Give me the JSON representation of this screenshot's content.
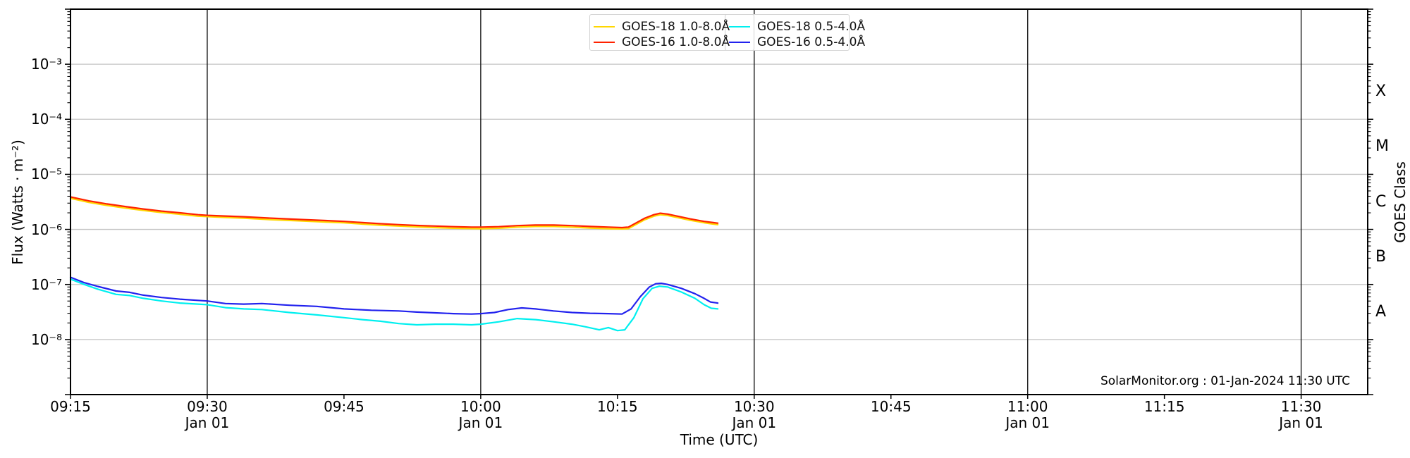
{
  "chart_data": {
    "type": "line",
    "title": "",
    "xlabel": "Time (UTC)",
    "ylabel": "Flux (Watts · m⁻²)",
    "y2label": "GOES Class",
    "annotation": "SolarMonitor.org : 01-Jan-2024 11:30 UTC",
    "grid": {
      "horizontal": true,
      "vertical": true
    },
    "legend_position": "upper center, two adjacent boxes",
    "xlim_minutes": [
      0,
      142.3
    ],
    "x_axis_start_time": "09:15",
    "ylim": [
      1e-09,
      0.01
    ],
    "x_ticks": [
      {
        "t": 0,
        "time": "09:15",
        "date": ""
      },
      {
        "t": 15,
        "time": "09:30",
        "date": "Jan 01"
      },
      {
        "t": 30,
        "time": "09:45",
        "date": ""
      },
      {
        "t": 45,
        "time": "10:00",
        "date": "Jan 01"
      },
      {
        "t": 60,
        "time": "10:15",
        "date": ""
      },
      {
        "t": 75,
        "time": "10:30",
        "date": "Jan 01"
      },
      {
        "t": 90,
        "time": "10:45",
        "date": ""
      },
      {
        "t": 105,
        "time": "11:00",
        "date": "Jan 01"
      },
      {
        "t": 120,
        "time": "11:15",
        "date": ""
      },
      {
        "t": 135,
        "time": "11:30",
        "date": "Jan 01"
      }
    ],
    "x_gridlines_t": [
      15,
      45,
      75,
      105,
      135
    ],
    "y_ticks_labeled": [
      {
        "exp": -3,
        "label": "10⁻³"
      },
      {
        "exp": -4,
        "label": "10⁻⁴"
      },
      {
        "exp": -5,
        "label": "10⁻⁵"
      },
      {
        "exp": -6,
        "label": "10⁻⁶"
      },
      {
        "exp": -7,
        "label": "10⁻⁷"
      },
      {
        "exp": -8,
        "label": "10⁻⁸"
      }
    ],
    "goes_classes": [
      {
        "label": "X",
        "log_center": -3.5
      },
      {
        "label": "M",
        "log_center": -4.5
      },
      {
        "label": "C",
        "log_center": -5.5
      },
      {
        "label": "B",
        "log_center": -6.5
      },
      {
        "label": "A",
        "log_center": -7.5
      }
    ],
    "colors": {
      "goes18_long": "#ffd700",
      "goes16_long": "#ff2200",
      "goes18_short": "#00efef",
      "goes16_short": "#2222ee",
      "h_grid": "#c4c4c4",
      "v_grid": "#1a1a1a",
      "frame": "#000000"
    },
    "series": [
      {
        "name": "GOES-18 1.0-8.0Å",
        "color_key": "goes18_long",
        "legend_box": "a",
        "points": [
          [
            0,
            3.67e-06
          ],
          [
            2,
            3.1e-06
          ],
          [
            4,
            2.73e-06
          ],
          [
            6,
            2.44e-06
          ],
          [
            8,
            2.21e-06
          ],
          [
            10,
            2.02e-06
          ],
          [
            12,
            1.88e-06
          ],
          [
            14,
            1.74e-06
          ],
          [
            17,
            1.65e-06
          ],
          [
            19,
            1.6e-06
          ],
          [
            22,
            1.5e-06
          ],
          [
            25,
            1.43e-06
          ],
          [
            28,
            1.36e-06
          ],
          [
            30,
            1.32e-06
          ],
          [
            32,
            1.25e-06
          ],
          [
            34,
            1.19e-06
          ],
          [
            36,
            1.15e-06
          ],
          [
            38,
            1.11e-06
          ],
          [
            40,
            1.08e-06
          ],
          [
            42,
            1.05e-06
          ],
          [
            45,
            1.03e-06
          ],
          [
            47,
            1.05e-06
          ],
          [
            49,
            1.1e-06
          ],
          [
            51,
            1.13e-06
          ],
          [
            53,
            1.13e-06
          ],
          [
            55,
            1.1e-06
          ],
          [
            57,
            1.06e-06
          ],
          [
            59,
            1.03e-06
          ],
          [
            60.5,
            1.02e-06
          ],
          [
            61.2,
            1.03e-06
          ],
          [
            62,
            1.22e-06
          ],
          [
            63,
            1.5e-06
          ],
          [
            64,
            1.74e-06
          ],
          [
            64.7,
            1.85e-06
          ],
          [
            65.5,
            1.79e-06
          ],
          [
            66.5,
            1.65e-06
          ],
          [
            68,
            1.46e-06
          ],
          [
            69.5,
            1.32e-06
          ],
          [
            70.5,
            1.25e-06
          ],
          [
            71,
            1.22e-06
          ]
        ]
      },
      {
        "name": "GOES-16 1.0-8.0Å",
        "color_key": "goes16_long",
        "legend_box": "a",
        "points": [
          [
            0,
            3.9e-06
          ],
          [
            2,
            3.3e-06
          ],
          [
            4,
            2.9e-06
          ],
          [
            6,
            2.6e-06
          ],
          [
            8,
            2.35e-06
          ],
          [
            10,
            2.15e-06
          ],
          [
            12,
            2e-06
          ],
          [
            14,
            1.85e-06
          ],
          [
            15,
            1.8e-06
          ],
          [
            17,
            1.75e-06
          ],
          [
            19,
            1.7e-06
          ],
          [
            22,
            1.6e-06
          ],
          [
            25,
            1.52e-06
          ],
          [
            28,
            1.45e-06
          ],
          [
            30,
            1.4e-06
          ],
          [
            32,
            1.33e-06
          ],
          [
            34,
            1.27e-06
          ],
          [
            36,
            1.22e-06
          ],
          [
            38,
            1.18e-06
          ],
          [
            40,
            1.15e-06
          ],
          [
            42,
            1.12e-06
          ],
          [
            44,
            1.1e-06
          ],
          [
            45,
            1.1e-06
          ],
          [
            47,
            1.12e-06
          ],
          [
            49,
            1.17e-06
          ],
          [
            51,
            1.2e-06
          ],
          [
            53,
            1.2e-06
          ],
          [
            55,
            1.17e-06
          ],
          [
            57,
            1.13e-06
          ],
          [
            59,
            1.1e-06
          ],
          [
            60.5,
            1.08e-06
          ],
          [
            61.2,
            1.1e-06
          ],
          [
            62,
            1.3e-06
          ],
          [
            63,
            1.6e-06
          ],
          [
            64,
            1.85e-06
          ],
          [
            64.7,
            1.97e-06
          ],
          [
            65.5,
            1.9e-06
          ],
          [
            66.5,
            1.75e-06
          ],
          [
            68,
            1.55e-06
          ],
          [
            69.5,
            1.4e-06
          ],
          [
            70.5,
            1.33e-06
          ],
          [
            71,
            1.3e-06
          ]
        ]
      },
      {
        "name": "GOES-18 0.5-4.0Å",
        "color_key": "goes18_short",
        "legend_box": "b",
        "points": [
          [
            0,
            1.25e-07
          ],
          [
            1.5,
            1e-07
          ],
          [
            3,
            8.2e-08
          ],
          [
            5,
            6.6e-08
          ],
          [
            6.5,
            6.3e-08
          ],
          [
            8,
            5.6e-08
          ],
          [
            10,
            5e-08
          ],
          [
            12,
            4.6e-08
          ],
          [
            15,
            4.3e-08
          ],
          [
            17,
            3.8e-08
          ],
          [
            19,
            3.6e-08
          ],
          [
            21,
            3.5e-08
          ],
          [
            24,
            3.1e-08
          ],
          [
            27,
            2.8e-08
          ],
          [
            30,
            2.5e-08
          ],
          [
            32,
            2.3e-08
          ],
          [
            34,
            2.15e-08
          ],
          [
            36,
            1.95e-08
          ],
          [
            38,
            1.85e-08
          ],
          [
            40,
            1.9e-08
          ],
          [
            42,
            1.9e-08
          ],
          [
            44,
            1.85e-08
          ],
          [
            45,
            1.9e-08
          ],
          [
            47,
            2.1e-08
          ],
          [
            49,
            2.4e-08
          ],
          [
            51,
            2.3e-08
          ],
          [
            53,
            2.1e-08
          ],
          [
            55,
            1.9e-08
          ],
          [
            56.5,
            1.7e-08
          ],
          [
            58,
            1.5e-08
          ],
          [
            59,
            1.65e-08
          ],
          [
            60,
            1.45e-08
          ],
          [
            60.8,
            1.5e-08
          ],
          [
            61.8,
            2.5e-08
          ],
          [
            62.8,
            5.5e-08
          ],
          [
            63.8,
            8.5e-08
          ],
          [
            64.6,
            9.3e-08
          ],
          [
            65.5,
            9e-08
          ],
          [
            67,
            7.3e-08
          ],
          [
            68.5,
            5.6e-08
          ],
          [
            69.5,
            4.3e-08
          ],
          [
            70.3,
            3.7e-08
          ],
          [
            71,
            3.6e-08
          ]
        ]
      },
      {
        "name": "GOES-16 0.5-4.0Å",
        "color_key": "goes16_short",
        "legend_box": "b",
        "points": [
          [
            0,
            1.35e-07
          ],
          [
            1.5,
            1.08e-07
          ],
          [
            3,
            9.2e-08
          ],
          [
            5,
            7.6e-08
          ],
          [
            6.5,
            7.2e-08
          ],
          [
            8,
            6.4e-08
          ],
          [
            10,
            5.8e-08
          ],
          [
            12,
            5.4e-08
          ],
          [
            15,
            5e-08
          ],
          [
            17,
            4.5e-08
          ],
          [
            19,
            4.4e-08
          ],
          [
            21,
            4.5e-08
          ],
          [
            24,
            4.2e-08
          ],
          [
            27,
            4e-08
          ],
          [
            30,
            3.6e-08
          ],
          [
            33,
            3.4e-08
          ],
          [
            36,
            3.3e-08
          ],
          [
            38,
            3.15e-08
          ],
          [
            40,
            3.05e-08
          ],
          [
            42,
            2.95e-08
          ],
          [
            44,
            2.9e-08
          ],
          [
            45,
            2.95e-08
          ],
          [
            46.5,
            3.1e-08
          ],
          [
            48,
            3.5e-08
          ],
          [
            49.5,
            3.75e-08
          ],
          [
            51,
            3.6e-08
          ],
          [
            53,
            3.3e-08
          ],
          [
            55,
            3.1e-08
          ],
          [
            57,
            3e-08
          ],
          [
            59,
            2.95e-08
          ],
          [
            60.5,
            2.9e-08
          ],
          [
            61.5,
            3.6e-08
          ],
          [
            62.5,
            6e-08
          ],
          [
            63.5,
            9e-08
          ],
          [
            64.2,
            1.03e-07
          ],
          [
            64.8,
            1.05e-07
          ],
          [
            65.5,
            1e-07
          ],
          [
            67,
            8.5e-08
          ],
          [
            68.5,
            6.8e-08
          ],
          [
            69.5,
            5.6e-08
          ],
          [
            70.2,
            4.8e-08
          ],
          [
            71,
            4.6e-08
          ]
        ]
      }
    ]
  }
}
